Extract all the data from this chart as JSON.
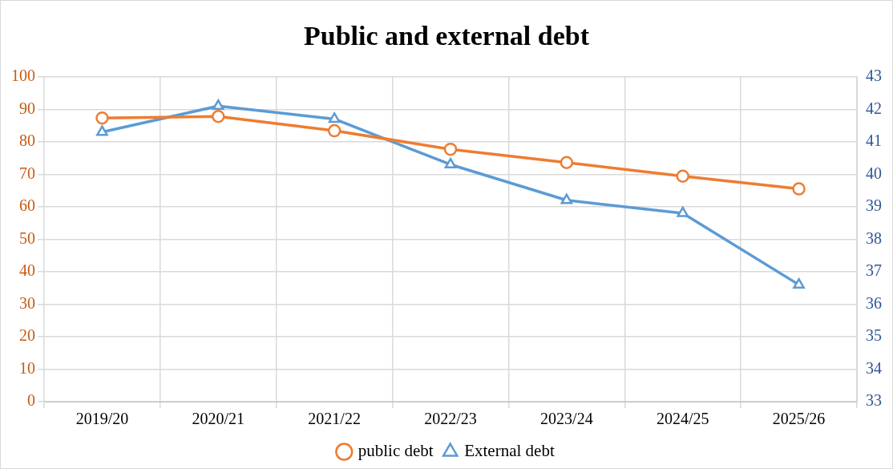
{
  "chart_data": {
    "type": "line",
    "title": "Public and external debt",
    "categories": [
      "2019/20",
      "2020/21",
      "2021/22",
      "2022/23",
      "2023/24",
      "2024/25",
      "2025/26"
    ],
    "series": [
      {
        "name": "public debt",
        "color": "#ed7d31",
        "marker": "circle",
        "values": [
          87.3,
          87.8,
          83.4,
          77.7,
          73.6,
          69.4,
          65.5
        ]
      },
      {
        "name": "External debt",
        "color": "#5b9bd5",
        "marker": "triangle",
        "axis": "y2",
        "values": [
          41.3,
          42.1,
          41.7,
          40.3,
          39.2,
          38.8,
          36.6
        ]
      }
    ],
    "ylim": [
      0,
      100
    ],
    "yticks": [
      0,
      10,
      20,
      30,
      40,
      50,
      60,
      70,
      80,
      90,
      100
    ],
    "y2lim": [
      33,
      43
    ],
    "y2ticks": [
      33,
      34,
      35,
      36,
      37,
      38,
      39,
      40,
      41,
      42,
      43
    ],
    "grid": true,
    "legend": "bottom",
    "line_style": "solid"
  }
}
